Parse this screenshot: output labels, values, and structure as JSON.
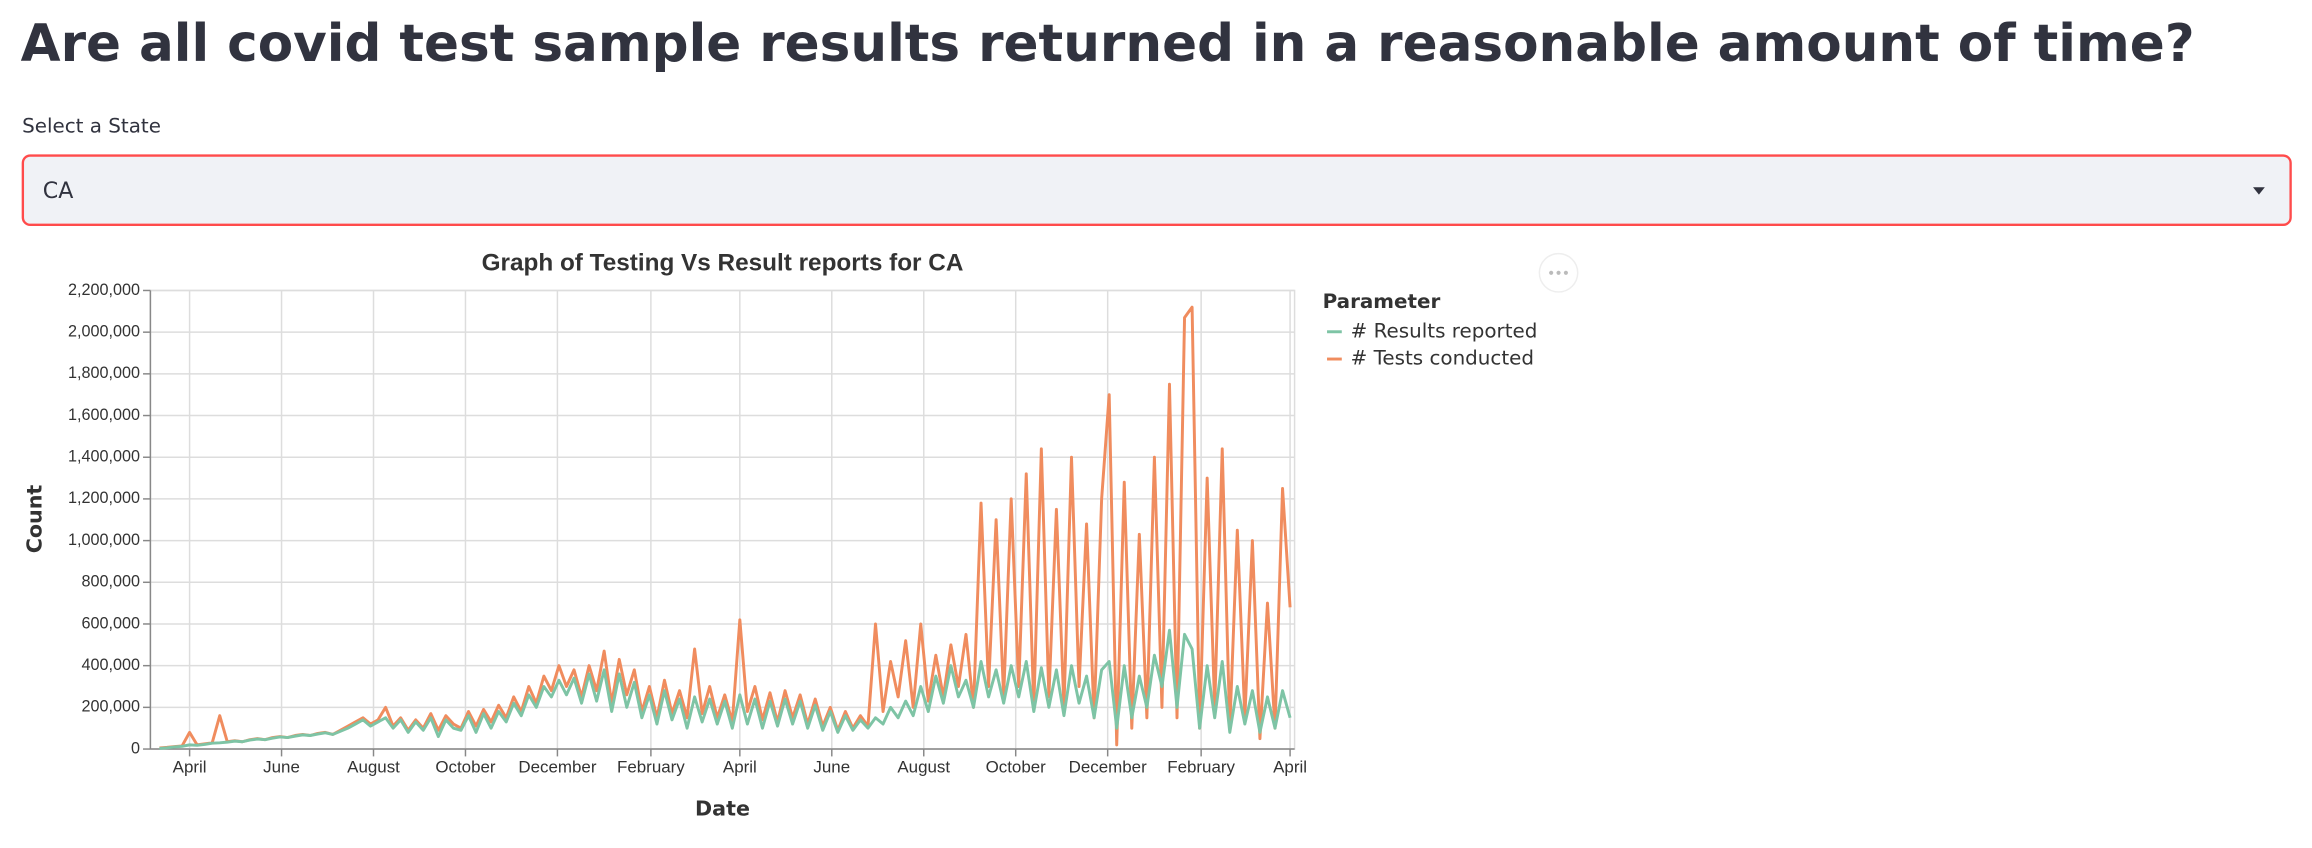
{
  "page_title": "Are all covid test sample results returned in a reasonable amount of time?",
  "select": {
    "label": "Select a State",
    "value": "CA"
  },
  "chart_data": {
    "type": "line",
    "title": "Graph of Testing Vs Result reports for CA",
    "x_label": "Date",
    "y_label": "Count",
    "legend_title": "Parameter",
    "grid": true,
    "xlim": [
      -26,
      733
    ],
    "xticks": [
      {
        "value": 0,
        "label": "April"
      },
      {
        "value": 61,
        "label": "June"
      },
      {
        "value": 122,
        "label": "August"
      },
      {
        "value": 183,
        "label": "October"
      },
      {
        "value": 244,
        "label": "December"
      },
      {
        "value": 306,
        "label": "February"
      },
      {
        "value": 365,
        "label": "April"
      },
      {
        "value": 426,
        "label": "June"
      },
      {
        "value": 487,
        "label": "August"
      },
      {
        "value": 548,
        "label": "October"
      },
      {
        "value": 609,
        "label": "December"
      },
      {
        "value": 671,
        "label": "February"
      },
      {
        "value": 730,
        "label": "April"
      }
    ],
    "ylim": [
      0,
      2200000
    ],
    "yticks": [
      0,
      {
        "value": 200000,
        "label": "200,000"
      },
      {
        "value": 400000,
        "label": "400,000"
      },
      {
        "value": 600000,
        "label": "600,000"
      },
      {
        "value": 800000,
        "label": "800,000"
      },
      {
        "value": 1000000,
        "label": "1,000,000"
      },
      {
        "value": 1200000,
        "label": "1,200,000"
      },
      {
        "value": 1400000,
        "label": "1,400,000"
      },
      {
        "value": 1600000,
        "label": "1,600,000"
      },
      {
        "value": 1800000,
        "label": "1,800,000"
      },
      {
        "value": 2000000,
        "label": "2,000,000"
      },
      {
        "value": 2200000,
        "label": "2,200,000"
      }
    ],
    "x": [
      -20,
      -15,
      -10,
      -5,
      0,
      5,
      10,
      15,
      20,
      25,
      30,
      35,
      40,
      45,
      50,
      55,
      60,
      65,
      70,
      75,
      80,
      85,
      90,
      95,
      100,
      105,
      110,
      115,
      120,
      125,
      130,
      135,
      140,
      145,
      150,
      155,
      160,
      165,
      170,
      175,
      180,
      185,
      190,
      195,
      200,
      205,
      210,
      215,
      220,
      225,
      230,
      235,
      240,
      245,
      250,
      255,
      260,
      265,
      270,
      275,
      280,
      285,
      290,
      295,
      300,
      305,
      310,
      315,
      320,
      325,
      330,
      335,
      340,
      345,
      350,
      355,
      360,
      365,
      370,
      375,
      380,
      385,
      390,
      395,
      400,
      405,
      410,
      415,
      420,
      425,
      430,
      435,
      440,
      445,
      450,
      455,
      460,
      465,
      470,
      475,
      480,
      485,
      490,
      495,
      500,
      505,
      510,
      515,
      520,
      525,
      530,
      535,
      540,
      545,
      550,
      555,
      560,
      565,
      570,
      575,
      580,
      585,
      590,
      595,
      600,
      605,
      610,
      615,
      620,
      625,
      630,
      635,
      640,
      645,
      650,
      655,
      660,
      665,
      670,
      675,
      680,
      685,
      690,
      695,
      700,
      705,
      710,
      715,
      720,
      725,
      730
    ],
    "series": [
      {
        "name": "# Results reported",
        "color": "#7ec4a5",
        "values": [
          3000,
          6000,
          10000,
          13000,
          20000,
          18000,
          22000,
          28000,
          30000,
          33000,
          38000,
          35000,
          43000,
          48000,
          45000,
          52000,
          58000,
          55000,
          62000,
          68000,
          65000,
          72000,
          78000,
          70000,
          85000,
          100000,
          120000,
          140000,
          110000,
          130000,
          150000,
          100000,
          140000,
          80000,
          130000,
          90000,
          150000,
          60000,
          140000,
          100000,
          90000,
          160000,
          80000,
          170000,
          100000,
          180000,
          130000,
          220000,
          160000,
          260000,
          200000,
          300000,
          250000,
          330000,
          260000,
          340000,
          220000,
          360000,
          230000,
          380000,
          180000,
          360000,
          200000,
          320000,
          150000,
          260000,
          120000,
          280000,
          140000,
          240000,
          100000,
          250000,
          130000,
          240000,
          120000,
          230000,
          100000,
          260000,
          120000,
          240000,
          100000,
          230000,
          110000,
          240000,
          120000,
          230000,
          100000,
          210000,
          90000,
          180000,
          80000,
          160000,
          90000,
          140000,
          100000,
          150000,
          120000,
          200000,
          150000,
          230000,
          160000,
          300000,
          180000,
          350000,
          220000,
          400000,
          250000,
          330000,
          200000,
          420000,
          250000,
          380000,
          220000,
          400000,
          250000,
          420000,
          180000,
          390000,
          200000,
          380000,
          160000,
          400000,
          220000,
          350000,
          150000,
          380000,
          420000,
          100000,
          400000,
          150000,
          350000,
          200000,
          450000,
          300000,
          570000,
          200000,
          550000,
          480000,
          100000,
          400000,
          150000,
          420000,
          80000,
          300000,
          120000,
          280000,
          80000,
          250000,
          100000,
          280000,
          150000
        ]
      },
      {
        "name": "# Tests conducted",
        "color": "#f08c5e",
        "values": [
          5000,
          8000,
          12000,
          15000,
          80000,
          20000,
          25000,
          30000,
          160000,
          35000,
          40000,
          35000,
          45000,
          50000,
          45000,
          55000,
          60000,
          55000,
          65000,
          70000,
          65000,
          75000,
          80000,
          70000,
          90000,
          110000,
          130000,
          150000,
          120000,
          140000,
          200000,
          110000,
          150000,
          90000,
          140000,
          100000,
          170000,
          90000,
          160000,
          120000,
          100000,
          180000,
          110000,
          190000,
          130000,
          210000,
          150000,
          250000,
          180000,
          300000,
          220000,
          350000,
          280000,
          400000,
          300000,
          380000,
          250000,
          400000,
          280000,
          470000,
          220000,
          430000,
          260000,
          380000,
          180000,
          300000,
          150000,
          330000,
          170000,
          280000,
          150000,
          480000,
          170000,
          300000,
          150000,
          260000,
          130000,
          620000,
          180000,
          300000,
          140000,
          270000,
          130000,
          280000,
          150000,
          260000,
          120000,
          240000,
          110000,
          200000,
          90000,
          180000,
          100000,
          160000,
          110000,
          600000,
          180000,
          420000,
          250000,
          520000,
          200000,
          600000,
          230000,
          450000,
          250000,
          500000,
          300000,
          550000,
          200000,
          1180000,
          300000,
          1100000,
          250000,
          1200000,
          300000,
          1320000,
          200000,
          1440000,
          250000,
          1150000,
          200000,
          1400000,
          300000,
          1080000,
          150000,
          1200000,
          1700000,
          20000,
          1280000,
          100000,
          1030000,
          150000,
          1400000,
          200000,
          1750000,
          150000,
          2070000,
          2120000,
          100000,
          1300000,
          200000,
          1440000,
          100000,
          1050000,
          150000,
          1000000,
          50000,
          700000,
          100000,
          1250000,
          680000
        ]
      }
    ]
  }
}
